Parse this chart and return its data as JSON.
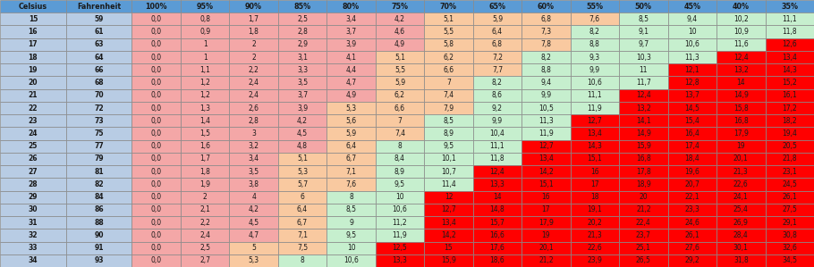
{
  "headers": [
    "Celsius",
    "Fahrenheit",
    "100%",
    "95%",
    "90%",
    "85%",
    "80%",
    "75%",
    "70%",
    "65%",
    "60%",
    "55%",
    "50%",
    "45%",
    "40%",
    "35%"
  ],
  "rows": [
    [
      15,
      59,
      0.0,
      0.8,
      1.7,
      2.5,
      3.4,
      4.2,
      5.1,
      5.9,
      6.8,
      7.6,
      8.5,
      9.4,
      10.2,
      11.1
    ],
    [
      16,
      61,
      0.0,
      0.9,
      1.8,
      2.8,
      3.7,
      4.6,
      5.5,
      6.4,
      7.3,
      8.2,
      9.1,
      10.0,
      10.9,
      11.8
    ],
    [
      17,
      63,
      0.0,
      1.0,
      2.0,
      2.9,
      3.9,
      4.9,
      5.8,
      6.8,
      7.8,
      8.8,
      9.7,
      10.6,
      11.6,
      12.6
    ],
    [
      18,
      64,
      0.0,
      1.0,
      2.0,
      3.1,
      4.1,
      5.1,
      6.2,
      7.2,
      8.2,
      9.3,
      10.3,
      11.3,
      12.4,
      13.4
    ],
    [
      19,
      66,
      0.0,
      1.1,
      2.2,
      3.3,
      4.4,
      5.5,
      6.6,
      7.7,
      8.8,
      9.9,
      11.0,
      12.1,
      13.2,
      14.3
    ],
    [
      20,
      68,
      0.0,
      1.2,
      2.4,
      3.5,
      4.7,
      5.9,
      7.0,
      8.2,
      9.4,
      10.6,
      11.7,
      12.8,
      14.0,
      15.2
    ],
    [
      21,
      70,
      0.0,
      1.2,
      2.4,
      3.7,
      4.9,
      6.2,
      7.4,
      8.6,
      9.9,
      11.1,
      12.4,
      13.7,
      14.9,
      16.1
    ],
    [
      22,
      72,
      0.0,
      1.3,
      2.6,
      3.9,
      5.3,
      6.6,
      7.9,
      9.2,
      10.5,
      11.9,
      13.2,
      14.5,
      15.8,
      17.2
    ],
    [
      23,
      73,
      0.0,
      1.4,
      2.8,
      4.2,
      5.6,
      7.0,
      8.5,
      9.9,
      11.3,
      12.7,
      14.1,
      15.4,
      16.8,
      18.2
    ],
    [
      24,
      75,
      0.0,
      1.5,
      3.0,
      4.5,
      5.9,
      7.4,
      8.9,
      10.4,
      11.9,
      13.4,
      14.9,
      16.4,
      17.9,
      19.4
    ],
    [
      25,
      77,
      0.0,
      1.6,
      3.2,
      4.8,
      6.4,
      8.0,
      9.5,
      11.1,
      12.7,
      14.3,
      15.9,
      17.4,
      19.0,
      20.5
    ],
    [
      26,
      79,
      0.0,
      1.7,
      3.4,
      5.1,
      6.7,
      8.4,
      10.1,
      11.8,
      13.4,
      15.1,
      16.8,
      18.4,
      20.1,
      21.8
    ],
    [
      27,
      81,
      0.0,
      1.8,
      3.5,
      5.3,
      7.1,
      8.9,
      10.7,
      12.4,
      14.2,
      16.0,
      17.8,
      19.6,
      21.3,
      23.1
    ],
    [
      28,
      82,
      0.0,
      1.9,
      3.8,
      5.7,
      7.6,
      9.5,
      11.4,
      13.3,
      15.1,
      17.0,
      18.9,
      20.7,
      22.6,
      24.5
    ],
    [
      29,
      84,
      0.0,
      2.0,
      4.0,
      6.0,
      8.0,
      10.0,
      12.0,
      14.0,
      16.0,
      18.0,
      20.0,
      22.1,
      24.1,
      26.1
    ],
    [
      30,
      86,
      0.0,
      2.1,
      4.2,
      6.4,
      8.5,
      10.6,
      12.7,
      14.8,
      17.0,
      19.1,
      21.2,
      23.3,
      25.4,
      27.5
    ],
    [
      31,
      88,
      0.0,
      2.2,
      4.5,
      6.7,
      9.0,
      11.2,
      13.4,
      15.7,
      17.9,
      20.2,
      22.4,
      24.6,
      26.9,
      29.1
    ],
    [
      32,
      90,
      0.0,
      2.4,
      4.7,
      7.1,
      9.5,
      11.9,
      14.2,
      16.6,
      19.0,
      21.3,
      23.7,
      26.1,
      28.4,
      30.8
    ],
    [
      33,
      91,
      0.0,
      2.5,
      5.0,
      7.5,
      10.0,
      12.5,
      15.0,
      17.6,
      20.1,
      22.6,
      25.1,
      27.6,
      30.1,
      32.6
    ],
    [
      34,
      93,
      0.0,
      2.7,
      5.3,
      8.0,
      10.6,
      13.3,
      15.9,
      18.6,
      21.2,
      23.9,
      26.5,
      29.2,
      31.8,
      34.5
    ]
  ],
  "col_widths_raw": [
    1.15,
    1.15,
    0.85,
    0.85,
    0.85,
    0.85,
    0.85,
    0.85,
    0.85,
    0.85,
    0.85,
    0.85,
    0.85,
    0.85,
    0.85,
    0.85
  ],
  "header_bg": "#5b9bd5",
  "header_fg": "#1a1a1a",
  "label_col_bg": "#b8cce4",
  "label_col_fg": "#1a1a1a",
  "color_salmon": "#f4a7a7",
  "color_light_orange": "#f9c9a0",
  "color_light_green": "#c6efce",
  "color_red": "#ff0000",
  "thresh_orange": 5.0,
  "thresh_green": 8.0,
  "thresh_red": 12.0,
  "grid_color": "#888888",
  "grid_lw": 0.5,
  "font_size_header": 5.8,
  "font_size_data": 5.5
}
